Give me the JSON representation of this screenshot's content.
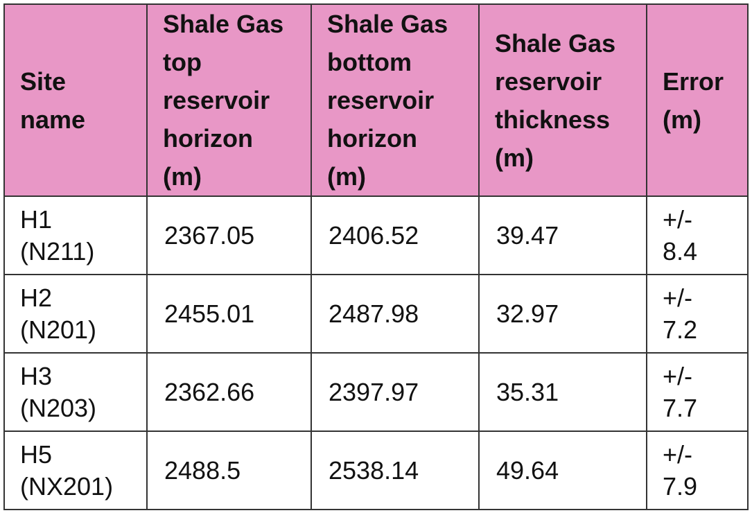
{
  "table": {
    "headers": [
      "Site\nname",
      "Shale Gas\ntop\nreservoir\nhorizon\n(m)",
      "Shale Gas\nbottom\nreservoir\nhorizon\n(m)",
      "Shale Gas\nreservoir\nthickness\n(m)",
      "Error\n(m)"
    ],
    "rows": [
      [
        "H1\n(N211)",
        "2367.05",
        "2406.52",
        "39.47",
        "+/-\n8.4"
      ],
      [
        "H2\n(N201)",
        "2455.01",
        "2487.98",
        "32.97",
        "+/-\n7.2"
      ],
      [
        "H3\n(N203)",
        "2362.66",
        "2397.97",
        "35.31",
        "+/-\n7.7"
      ],
      [
        "H5\n(NX201)",
        "2488.5",
        "2538.14",
        "49.64",
        "+/-\n7.9"
      ]
    ],
    "header_color": "#e897c6",
    "border_color": "#333333"
  }
}
